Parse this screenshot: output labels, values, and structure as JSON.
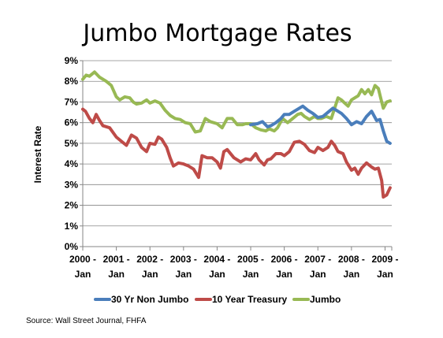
{
  "chart_data": {
    "type": "line",
    "title": "Jumbo Mortgage Rates",
    "ylabel": "Interest Rate",
    "xlabel": "",
    "ylim": [
      0,
      9
    ],
    "y_ticks": [
      "0%",
      "1%",
      "2%",
      "3%",
      "4%",
      "5%",
      "6%",
      "7%",
      "8%",
      "9%"
    ],
    "x_years": [
      "2000 -",
      "2001 -",
      "2002 -",
      "2003 -",
      "2004 -",
      "2005 -",
      "2006 -",
      "2007 -",
      "2008 -",
      "2009 -"
    ],
    "x_month": "Jan",
    "grid": "horizontal",
    "legend_position": "bottom",
    "series": [
      {
        "name": "30 Yr Non Jumbo",
        "color": "#4a7ebb",
        "points": [
          [
            2005.0,
            5.9
          ],
          [
            2005.2,
            5.95
          ],
          [
            2005.35,
            6.05
          ],
          [
            2005.5,
            5.8
          ],
          [
            2005.6,
            5.85
          ],
          [
            2005.75,
            6.0
          ],
          [
            2005.9,
            6.2
          ],
          [
            2006.0,
            6.4
          ],
          [
            2006.15,
            6.4
          ],
          [
            2006.3,
            6.55
          ],
          [
            2006.45,
            6.7
          ],
          [
            2006.55,
            6.8
          ],
          [
            2006.7,
            6.6
          ],
          [
            2006.85,
            6.45
          ],
          [
            2007.0,
            6.25
          ],
          [
            2007.15,
            6.3
          ],
          [
            2007.3,
            6.5
          ],
          [
            2007.45,
            6.7
          ],
          [
            2007.55,
            6.6
          ],
          [
            2007.7,
            6.45
          ],
          [
            2007.85,
            6.2
          ],
          [
            2008.0,
            5.9
          ],
          [
            2008.15,
            6.05
          ],
          [
            2008.3,
            5.95
          ],
          [
            2008.45,
            6.3
          ],
          [
            2008.6,
            6.55
          ],
          [
            2008.75,
            6.1
          ],
          [
            2008.85,
            6.15
          ],
          [
            2008.95,
            5.6
          ],
          [
            2009.05,
            5.1
          ],
          [
            2009.15,
            5.0
          ]
        ]
      },
      {
        "name": "10 Year Treasury",
        "color": "#be4b48",
        "points": [
          [
            2000.0,
            6.65
          ],
          [
            2000.08,
            6.55
          ],
          [
            2000.2,
            6.2
          ],
          [
            2000.3,
            6.0
          ],
          [
            2000.4,
            6.4
          ],
          [
            2000.5,
            6.1
          ],
          [
            2000.6,
            5.85
          ],
          [
            2000.8,
            5.75
          ],
          [
            2001.0,
            5.3
          ],
          [
            2001.15,
            5.1
          ],
          [
            2001.3,
            4.9
          ],
          [
            2001.45,
            5.4
          ],
          [
            2001.6,
            5.25
          ],
          [
            2001.75,
            4.8
          ],
          [
            2001.9,
            4.6
          ],
          [
            2002.0,
            5.0
          ],
          [
            2002.15,
            4.95
          ],
          [
            2002.25,
            5.3
          ],
          [
            2002.35,
            5.2
          ],
          [
            2002.5,
            4.8
          ],
          [
            2002.6,
            4.3
          ],
          [
            2002.7,
            3.9
          ],
          [
            2002.85,
            4.05
          ],
          [
            2003.0,
            4.0
          ],
          [
            2003.15,
            3.9
          ],
          [
            2003.3,
            3.75
          ],
          [
            2003.45,
            3.35
          ],
          [
            2003.55,
            4.4
          ],
          [
            2003.7,
            4.3
          ],
          [
            2003.85,
            4.3
          ],
          [
            2004.0,
            4.1
          ],
          [
            2004.1,
            3.8
          ],
          [
            2004.2,
            4.6
          ],
          [
            2004.3,
            4.7
          ],
          [
            2004.5,
            4.3
          ],
          [
            2004.7,
            4.1
          ],
          [
            2004.85,
            4.25
          ],
          [
            2005.0,
            4.2
          ],
          [
            2005.15,
            4.5
          ],
          [
            2005.25,
            4.2
          ],
          [
            2005.4,
            3.95
          ],
          [
            2005.5,
            4.2
          ],
          [
            2005.6,
            4.25
          ],
          [
            2005.75,
            4.5
          ],
          [
            2005.9,
            4.5
          ],
          [
            2006.0,
            4.4
          ],
          [
            2006.15,
            4.6
          ],
          [
            2006.3,
            5.05
          ],
          [
            2006.45,
            5.1
          ],
          [
            2006.6,
            4.95
          ],
          [
            2006.75,
            4.65
          ],
          [
            2006.9,
            4.55
          ],
          [
            2007.0,
            4.8
          ],
          [
            2007.15,
            4.65
          ],
          [
            2007.3,
            4.8
          ],
          [
            2007.4,
            5.1
          ],
          [
            2007.5,
            4.9
          ],
          [
            2007.6,
            4.6
          ],
          [
            2007.75,
            4.5
          ],
          [
            2007.85,
            4.1
          ],
          [
            2008.0,
            3.7
          ],
          [
            2008.1,
            3.8
          ],
          [
            2008.2,
            3.5
          ],
          [
            2008.3,
            3.8
          ],
          [
            2008.45,
            4.05
          ],
          [
            2008.6,
            3.85
          ],
          [
            2008.7,
            3.75
          ],
          [
            2008.8,
            3.8
          ],
          [
            2008.9,
            3.2
          ],
          [
            2008.95,
            2.4
          ],
          [
            2009.05,
            2.5
          ],
          [
            2009.15,
            2.85
          ]
        ]
      },
      {
        "name": "Jumbo",
        "color": "#98b954",
        "points": [
          [
            2000.0,
            8.1
          ],
          [
            2000.1,
            8.3
          ],
          [
            2000.2,
            8.25
          ],
          [
            2000.35,
            8.45
          ],
          [
            2000.5,
            8.2
          ],
          [
            2000.7,
            8.0
          ],
          [
            2000.85,
            7.8
          ],
          [
            2001.0,
            7.25
          ],
          [
            2001.1,
            7.1
          ],
          [
            2001.25,
            7.25
          ],
          [
            2001.4,
            7.2
          ],
          [
            2001.5,
            7.0
          ],
          [
            2001.6,
            6.9
          ],
          [
            2001.75,
            6.95
          ],
          [
            2001.9,
            7.1
          ],
          [
            2002.0,
            6.95
          ],
          [
            2002.15,
            7.05
          ],
          [
            2002.3,
            6.95
          ],
          [
            2002.45,
            6.6
          ],
          [
            2002.6,
            6.35
          ],
          [
            2002.75,
            6.2
          ],
          [
            2002.9,
            6.15
          ],
          [
            2003.05,
            6.0
          ],
          [
            2003.2,
            5.95
          ],
          [
            2003.35,
            5.55
          ],
          [
            2003.5,
            5.6
          ],
          [
            2003.65,
            6.2
          ],
          [
            2003.8,
            6.05
          ],
          [
            2004.0,
            5.95
          ],
          [
            2004.15,
            5.75
          ],
          [
            2004.3,
            6.2
          ],
          [
            2004.45,
            6.2
          ],
          [
            2004.6,
            5.9
          ],
          [
            2004.75,
            5.9
          ],
          [
            2004.85,
            5.95
          ],
          [
            2005.0,
            5.95
          ],
          [
            2005.15,
            5.75
          ],
          [
            2005.3,
            5.65
          ],
          [
            2005.45,
            5.6
          ],
          [
            2005.55,
            5.7
          ],
          [
            2005.7,
            5.6
          ],
          [
            2005.8,
            5.75
          ],
          [
            2005.95,
            6.2
          ],
          [
            2006.1,
            6.0
          ],
          [
            2006.25,
            6.2
          ],
          [
            2006.4,
            6.4
          ],
          [
            2006.5,
            6.45
          ],
          [
            2006.6,
            6.3
          ],
          [
            2006.75,
            6.15
          ],
          [
            2006.9,
            6.3
          ],
          [
            2007.0,
            6.2
          ],
          [
            2007.1,
            6.2
          ],
          [
            2007.25,
            6.3
          ],
          [
            2007.4,
            6.2
          ],
          [
            2007.5,
            6.7
          ],
          [
            2007.6,
            7.2
          ],
          [
            2007.7,
            7.1
          ],
          [
            2007.8,
            6.95
          ],
          [
            2007.9,
            6.8
          ],
          [
            2008.0,
            7.1
          ],
          [
            2008.1,
            7.2
          ],
          [
            2008.2,
            7.3
          ],
          [
            2008.3,
            7.6
          ],
          [
            2008.4,
            7.4
          ],
          [
            2008.5,
            7.6
          ],
          [
            2008.6,
            7.35
          ],
          [
            2008.7,
            7.8
          ],
          [
            2008.8,
            7.65
          ],
          [
            2008.9,
            7.0
          ],
          [
            2008.95,
            6.7
          ],
          [
            2009.05,
            7.0
          ],
          [
            2009.15,
            7.05
          ]
        ]
      }
    ]
  },
  "source": "Source: Wall Street Journal, FHFA"
}
